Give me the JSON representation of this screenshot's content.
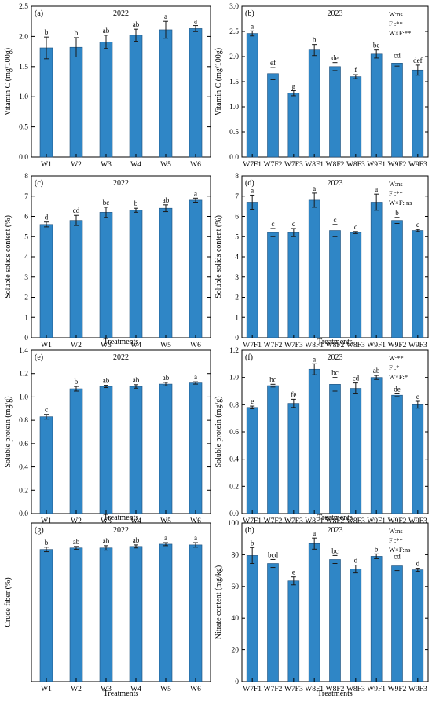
{
  "colors": {
    "bar": "#2f86c6",
    "bar_edge": "#1f4e79",
    "error_bar": "#1a1a1a",
    "axis": "#000000"
  },
  "chart_data": [
    {
      "type": "bar",
      "panel_label": "(a)",
      "year": "2022",
      "categories": [
        "W1",
        "W2",
        "W3",
        "W4",
        "W5",
        "W6"
      ],
      "values": [
        1.81,
        1.82,
        1.91,
        2.02,
        2.11,
        2.13
      ],
      "errors": [
        0.18,
        0.16,
        0.11,
        0.1,
        0.14,
        0.05
      ],
      "letters": [
        "b",
        "b",
        "ab",
        "ab",
        "a",
        "a"
      ],
      "ylabel": "Vitamin C (mg/100g)",
      "xlabel": "",
      "ylim": [
        0,
        2.5
      ],
      "yticks": [
        "0.0",
        "0.5",
        "1.0",
        "1.5",
        "2.0",
        "2.5"
      ],
      "stats": []
    },
    {
      "type": "bar",
      "panel_label": "(b)",
      "year": "2023",
      "categories": [
        "W7F1",
        "W7F2",
        "W7F3",
        "W8F1",
        "W8F2",
        "W8F3",
        "W9F1",
        "W9F2",
        "W9F3"
      ],
      "values": [
        2.46,
        1.66,
        1.27,
        2.13,
        1.8,
        1.6,
        2.05,
        1.87,
        1.73
      ],
      "errors": [
        0.05,
        0.12,
        0.05,
        0.11,
        0.08,
        0.04,
        0.08,
        0.06,
        0.1
      ],
      "letters": [
        "a",
        "ef",
        "g",
        "b",
        "de",
        "f",
        "bc",
        "cd",
        "def"
      ],
      "ylabel": "Vitamin C (mg/100g)",
      "xlabel": "",
      "ylim": [
        0,
        3.0
      ],
      "yticks": [
        "0.0",
        "0.5",
        "1.0",
        "1.5",
        "2.0",
        "2.5",
        "3.0"
      ],
      "stats": [
        "W:ns",
        "F :**",
        "W×F:**"
      ]
    },
    {
      "type": "bar",
      "panel_label": "(c)",
      "year": "2022",
      "categories": [
        "W1",
        "W2",
        "W3",
        "W4",
        "W5",
        "W6"
      ],
      "values": [
        5.6,
        5.8,
        6.2,
        6.3,
        6.4,
        6.8
      ],
      "errors": [
        0.12,
        0.25,
        0.25,
        0.1,
        0.17,
        0.1
      ],
      "letters": [
        "d",
        "cd",
        "bc",
        "b",
        "ab",
        "a"
      ],
      "ylabel": "Soluble solids content (%)",
      "xlabel": "Treatments",
      "ylim": [
        0,
        8
      ],
      "yticks": [
        "0",
        "1",
        "2",
        "3",
        "4",
        "5",
        "6",
        "7",
        "8"
      ],
      "stats": []
    },
    {
      "type": "bar",
      "panel_label": "(d)",
      "year": "2023",
      "categories": [
        "W7F1",
        "W7F2",
        "W7F3",
        "W8F1",
        "W8F2",
        "W8F3",
        "W9F1",
        "W9F2",
        "W9F3"
      ],
      "values": [
        6.7,
        5.2,
        5.2,
        6.8,
        5.3,
        5.2,
        6.7,
        5.8,
        5.3
      ],
      "errors": [
        0.35,
        0.2,
        0.2,
        0.35,
        0.3,
        0.05,
        0.4,
        0.15,
        0.05
      ],
      "letters": [
        "a",
        "c",
        "c",
        "a",
        "c",
        "c",
        "a",
        "b",
        "c"
      ],
      "ylabel": "Soluble solids content (%)",
      "xlabel": "Treatments",
      "ylim": [
        0,
        8
      ],
      "yticks": [
        "0",
        "1",
        "2",
        "3",
        "4",
        "5",
        "6",
        "7",
        "8"
      ],
      "stats": [
        "W:ns",
        "F :**",
        "W×F: ns"
      ]
    },
    {
      "type": "bar",
      "panel_label": "(e)",
      "year": "2022",
      "categories": [
        "W1",
        "W2",
        "W3",
        "W4",
        "W5",
        "W6"
      ],
      "values": [
        0.83,
        1.07,
        1.09,
        1.09,
        1.11,
        1.12
      ],
      "errors": [
        0.02,
        0.02,
        0.01,
        0.015,
        0.015,
        0.01
      ],
      "letters": [
        "c",
        "b",
        "ab",
        "ab",
        "ab",
        "a"
      ],
      "ylabel": "Soluble protein (mg/g)",
      "xlabel": "Treatments",
      "ylim": [
        0,
        1.4
      ],
      "yticks": [
        "0.0",
        "0.2",
        "0.4",
        "0.6",
        "0.8",
        "1.0",
        "1.2",
        "1.4"
      ],
      "stats": []
    },
    {
      "type": "bar",
      "panel_label": "(f)",
      "year": "2023",
      "categories": [
        "W7F1",
        "W7F2",
        "W7F3",
        "W8F1",
        "W8F2",
        "W8F3",
        "W9F1",
        "W9F2",
        "W9F3"
      ],
      "values": [
        0.78,
        0.94,
        0.81,
        1.06,
        0.95,
        0.92,
        1.0,
        0.87,
        0.8
      ],
      "errors": [
        0.01,
        0.01,
        0.03,
        0.04,
        0.05,
        0.04,
        0.015,
        0.01,
        0.025
      ],
      "letters": [
        "e",
        "bc",
        "fe",
        "a",
        "bc",
        "cd",
        "ab",
        "de",
        "e"
      ],
      "ylabel": "Soluble protein (mg/g)",
      "xlabel": "Treatments",
      "ylim": [
        0,
        1.2
      ],
      "yticks": [
        "0.0",
        "0.2",
        "0.4",
        "0.6",
        "0.8",
        "1.0",
        "1.2"
      ],
      "stats": [
        "W:**",
        "F :*",
        "W×F:*"
      ]
    },
    {
      "type": "bar",
      "panel_label": "(g)",
      "year": "2022",
      "categories": [
        "W1",
        "W2",
        "W3",
        "W4",
        "W5",
        "W6"
      ],
      "values": [
        1.75,
        1.77,
        1.77,
        1.79,
        1.82,
        1.81
      ],
      "errors": [
        0.03,
        0.02,
        0.03,
        0.02,
        0.02,
        0.03
      ],
      "letters": [
        "b",
        "ab",
        "ab",
        "ab",
        "a",
        "a"
      ],
      "ylabel": "Crude fiber (%)",
      "xlabel": "Treatments",
      "ylim": [
        0,
        2.1
      ],
      "yticks": [],
      "stats": []
    },
    {
      "type": "bar",
      "panel_label": "(h)",
      "year": "2023",
      "categories": [
        "W7F1",
        "W7F2",
        "W7F3",
        "W8F1",
        "W8F2",
        "W8F3",
        "W9F1",
        "W9F2",
        "W9F3"
      ],
      "values": [
        79.5,
        74.5,
        63.5,
        87.0,
        77.0,
        71.0,
        79.0,
        73.0,
        70.5
      ],
      "errors": [
        5.0,
        2.5,
        2.5,
        3.5,
        2.5,
        2.5,
        1.5,
        3.0,
        1.0
      ],
      "letters": [
        "b",
        "bcd",
        "e",
        "a",
        "bc",
        "d",
        "b",
        "cd",
        "d"
      ],
      "ylabel": "Nitrate content (mg/kg)",
      "xlabel": "Treatments",
      "ylim": [
        0,
        100
      ],
      "yticks": [
        "0",
        "20",
        "40",
        "60",
        "80",
        "100"
      ],
      "stats": [
        "W:ns",
        "F :**",
        "W×F:ns"
      ]
    }
  ]
}
